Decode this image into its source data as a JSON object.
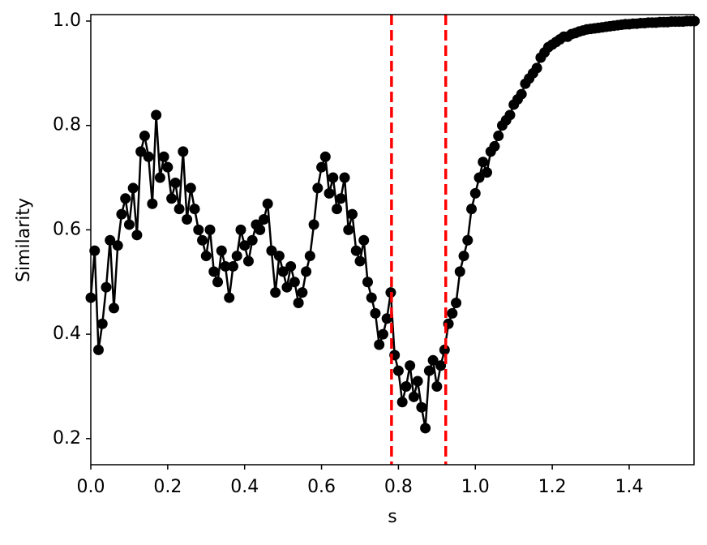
{
  "chart_data": {
    "type": "line",
    "x_label": "s",
    "y_label": "Similarity",
    "x": [
      0,
      0.01,
      0.02,
      0.03,
      0.04,
      0.05,
      0.06,
      0.07,
      0.08,
      0.09,
      0.1,
      0.11,
      0.12,
      0.13,
      0.14,
      0.15,
      0.16,
      0.17,
      0.18,
      0.19,
      0.2,
      0.21,
      0.22,
      0.23,
      0.24,
      0.25,
      0.26,
      0.27,
      0.28,
      0.29,
      0.3,
      0.31,
      0.32,
      0.33,
      0.34,
      0.35,
      0.36,
      0.37,
      0.38,
      0.39,
      0.4,
      0.41,
      0.42,
      0.43,
      0.44,
      0.45,
      0.46,
      0.47,
      0.48,
      0.49,
      0.5,
      0.51,
      0.52,
      0.53,
      0.54,
      0.55,
      0.56,
      0.57,
      0.58,
      0.59,
      0.6,
      0.61,
      0.62,
      0.63,
      0.64,
      0.65,
      0.66,
      0.67,
      0.68,
      0.69,
      0.7,
      0.71,
      0.72,
      0.73,
      0.74,
      0.75,
      0.76,
      0.77,
      0.78,
      0.79,
      0.8,
      0.81,
      0.82,
      0.83,
      0.84,
      0.85,
      0.86,
      0.87,
      0.88,
      0.89,
      0.9,
      0.91,
      0.92,
      0.93,
      0.94,
      0.95,
      0.96,
      0.97,
      0.98,
      0.99,
      1,
      1.01,
      1.02,
      1.03,
      1.04,
      1.05,
      1.06,
      1.07,
      1.08,
      1.09,
      1.1,
      1.11,
      1.12,
      1.13,
      1.14,
      1.15,
      1.16,
      1.17,
      1.18,
      1.19,
      1.2,
      1.21,
      1.22,
      1.23,
      1.24,
      1.25,
      1.26,
      1.27,
      1.28,
      1.29,
      1.3,
      1.31,
      1.32,
      1.33,
      1.34,
      1.35,
      1.36,
      1.37,
      1.38,
      1.39,
      1.4,
      1.41,
      1.42,
      1.43,
      1.44,
      1.45,
      1.46,
      1.47,
      1.48,
      1.49,
      1.5,
      1.51,
      1.52,
      1.53,
      1.54,
      1.55,
      1.56,
      1.57
    ],
    "series": [
      {
        "color": "#000000",
        "values": [
          0.47,
          0.56,
          0.37,
          0.42,
          0.49,
          0.58,
          0.45,
          0.57,
          0.63,
          0.66,
          0.61,
          0.68,
          0.59,
          0.75,
          0.78,
          0.74,
          0.65,
          0.82,
          0.7,
          0.74,
          0.72,
          0.66,
          0.69,
          0.64,
          0.75,
          0.62,
          0.68,
          0.64,
          0.6,
          0.58,
          0.55,
          0.6,
          0.52,
          0.5,
          0.56,
          0.53,
          0.47,
          0.53,
          0.55,
          0.6,
          0.57,
          0.54,
          0.58,
          0.61,
          0.6,
          0.62,
          0.65,
          0.56,
          0.48,
          0.55,
          0.52,
          0.49,
          0.53,
          0.5,
          0.46,
          0.48,
          0.52,
          0.55,
          0.61,
          0.68,
          0.72,
          0.74,
          0.67,
          0.7,
          0.64,
          0.66,
          0.7,
          0.6,
          0.63,
          0.56,
          0.54,
          0.58,
          0.5,
          0.47,
          0.44,
          0.38,
          0.4,
          0.43,
          0.48,
          0.36,
          0.33,
          0.27,
          0.3,
          0.34,
          0.28,
          0.31,
          0.26,
          0.22,
          0.33,
          0.35,
          0.3,
          0.34,
          0.37,
          0.42,
          0.44,
          0.46,
          0.52,
          0.55,
          0.58,
          0.64,
          0.67,
          0.7,
          0.73,
          0.71,
          0.75,
          0.76,
          0.78,
          0.8,
          0.81,
          0.82,
          0.84,
          0.85,
          0.86,
          0.88,
          0.89,
          0.9,
          0.91,
          0.93,
          0.94,
          0.95,
          0.955,
          0.96,
          0.965,
          0.97,
          0.97,
          0.975,
          0.977,
          0.98,
          0.982,
          0.984,
          0.985,
          0.986,
          0.987,
          0.988,
          0.989,
          0.99,
          0.991,
          0.992,
          0.993,
          0.994,
          0.994,
          0.995,
          0.995,
          0.996,
          0.996,
          0.997,
          0.997,
          0.997,
          0.998,
          0.998,
          0.998,
          0.999,
          0.999,
          0.999,
          0.999,
          1,
          1,
          1
        ]
      }
    ],
    "vlines": [
      {
        "value": 0.782,
        "color": "#ff0000"
      },
      {
        "value": 0.923,
        "color": "#ff0000"
      }
    ],
    "xlim": [
      0,
      1.5687
    ],
    "ylim": [
      0.15,
      1.0124
    ],
    "xticks": [
      {
        "value": 0,
        "label": "0.0"
      },
      0.2,
      0.4,
      0.6,
      0.8,
      {
        "value": 1,
        "label": "1.0"
      },
      1.2,
      1.4
    ],
    "yticks": [
      0.2,
      0.4,
      0.6,
      0.8,
      {
        "value": 1,
        "label": "1.0"
      }
    ]
  }
}
